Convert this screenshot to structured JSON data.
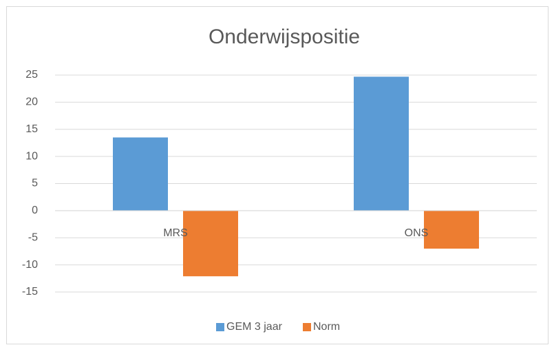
{
  "chart_data": {
    "type": "bar",
    "title": "Onderwijspositie",
    "categories": [
      "MRS",
      "ONS"
    ],
    "series": [
      {
        "name": "GEM 3 jaar",
        "color": "#5b9bd5",
        "values": [
          13.5,
          24.7
        ]
      },
      {
        "name": "Norm",
        "color": "#ed7d31",
        "values": [
          -12.1,
          -7.0
        ]
      }
    ],
    "ylim": [
      -15,
      25
    ],
    "yticks": [
      -15,
      -10,
      -5,
      0,
      5,
      10,
      15,
      20,
      25
    ],
    "grid": true,
    "legend": "bottom"
  }
}
